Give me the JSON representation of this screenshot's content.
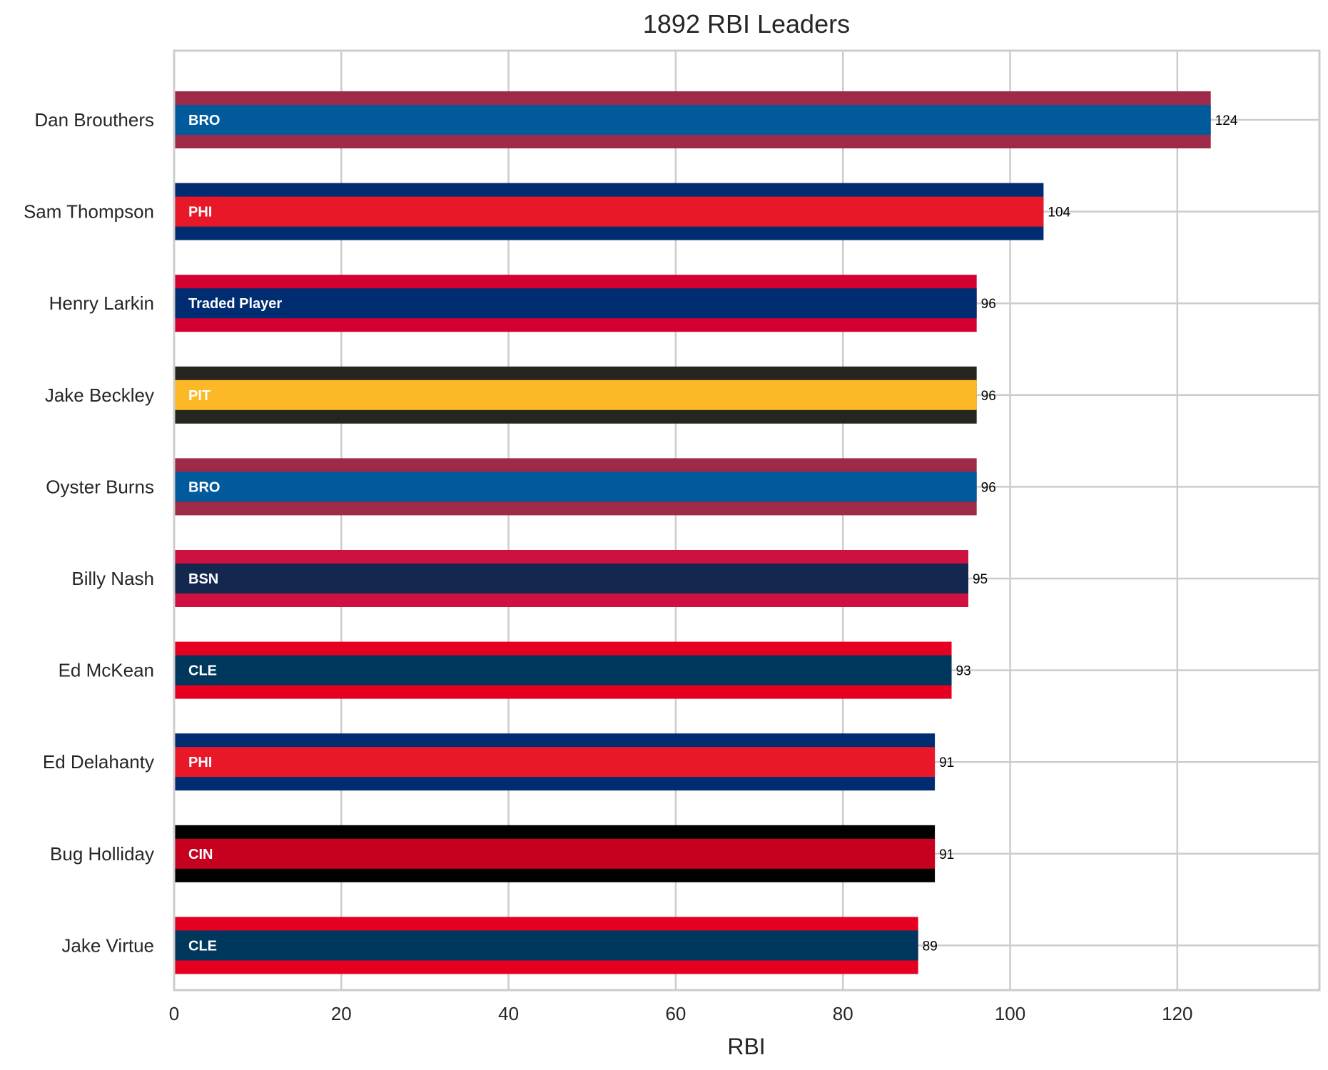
{
  "chart_data": {
    "type": "bar",
    "orientation": "horizontal",
    "title": "1892 RBI Leaders",
    "xlabel": "RBI",
    "ylabel": "",
    "xlim": [
      0,
      137
    ],
    "xticks": [
      0,
      20,
      40,
      60,
      80,
      100,
      120
    ],
    "grid": true,
    "legend": "none",
    "bars": [
      {
        "player": "Dan Brouthers",
        "team": "BRO",
        "value": 124,
        "primary_color": "#005A9C",
        "secondary_color": "#9E2A47"
      },
      {
        "player": "Sam Thompson",
        "team": "PHI",
        "value": 104,
        "primary_color": "#E81828",
        "secondary_color": "#002D72"
      },
      {
        "player": "Henry Larkin",
        "team": "Traded Player",
        "value": 96,
        "primary_color": "#002D72",
        "secondary_color": "#D50032"
      },
      {
        "player": "Jake Beckley",
        "team": "PIT",
        "value": 96,
        "primary_color": "#FDB827",
        "secondary_color": "#27251F"
      },
      {
        "player": "Oyster Burns",
        "team": "BRO",
        "value": 96,
        "primary_color": "#005A9C",
        "secondary_color": "#9E2A47"
      },
      {
        "player": "Billy Nash",
        "team": "BSN",
        "value": 95,
        "primary_color": "#13274F",
        "secondary_color": "#CE1141"
      },
      {
        "player": "Ed McKean",
        "team": "CLE",
        "value": 93,
        "primary_color": "#00385D",
        "secondary_color": "#E50022"
      },
      {
        "player": "Ed Delahanty",
        "team": "PHI",
        "value": 91,
        "primary_color": "#E81828",
        "secondary_color": "#002D72"
      },
      {
        "player": "Bug Holliday",
        "team": "CIN",
        "value": 91,
        "primary_color": "#C6011F",
        "secondary_color": "#000000"
      },
      {
        "player": "Jake Virtue",
        "team": "CLE",
        "value": 89,
        "primary_color": "#00385D",
        "secondary_color": "#E50022"
      }
    ]
  }
}
